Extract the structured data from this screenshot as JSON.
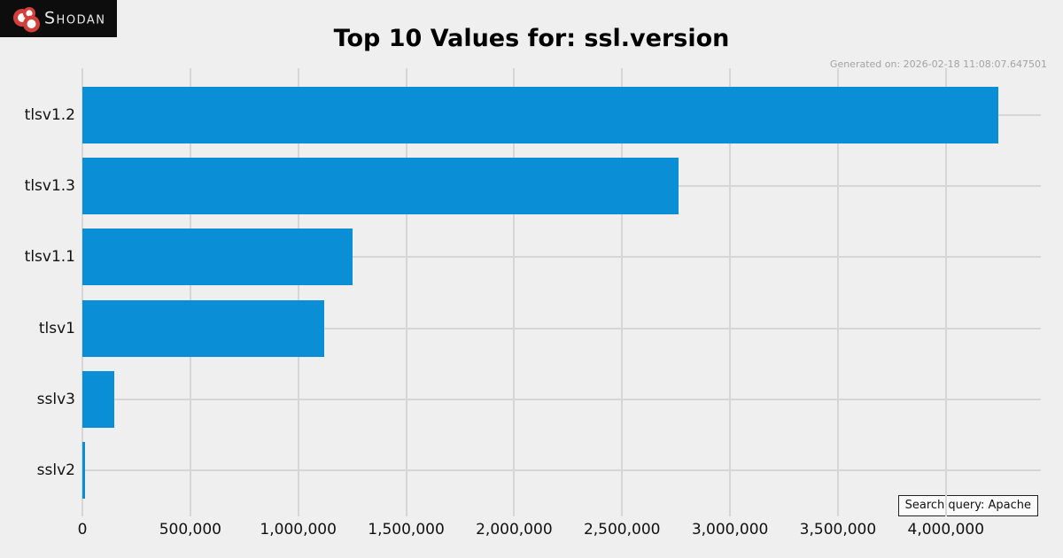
{
  "logo": {
    "text": "Shodan",
    "bg_color": "#0d0d0d",
    "dot_color": "#d2403c"
  },
  "header": {
    "generated_label": "Generated on: 2026-02-18 11:08:07.647501"
  },
  "footer": {
    "search_query_label": "Search query: Apache"
  },
  "chart_data": {
    "type": "bar",
    "orientation": "horizontal",
    "title": "Top 10 Values for: ssl.version",
    "xlabel": "",
    "ylabel": "",
    "categories": [
      "tlsv1.2",
      "tlsv1.3",
      "tlsv1.1",
      "tlsv1",
      "sslv3",
      "sslv2"
    ],
    "values": [
      4242000,
      2761000,
      1251000,
      1120000,
      148000,
      11000
    ],
    "xlim": [
      0,
      4440000
    ],
    "x_ticks": [
      0,
      500000,
      1000000,
      1500000,
      2000000,
      2500000,
      3000000,
      3500000,
      4000000
    ],
    "x_tick_labels": [
      "0",
      "500,000",
      "1,000,000",
      "1,500,000",
      "2,000,000",
      "2,500,000",
      "3,000,000",
      "3,500,000",
      "4,000,000"
    ],
    "grid": true,
    "legend": false,
    "bar_color": "#0a8ed5",
    "background_color": "#efefef",
    "grid_color": "#d6d6d6"
  }
}
